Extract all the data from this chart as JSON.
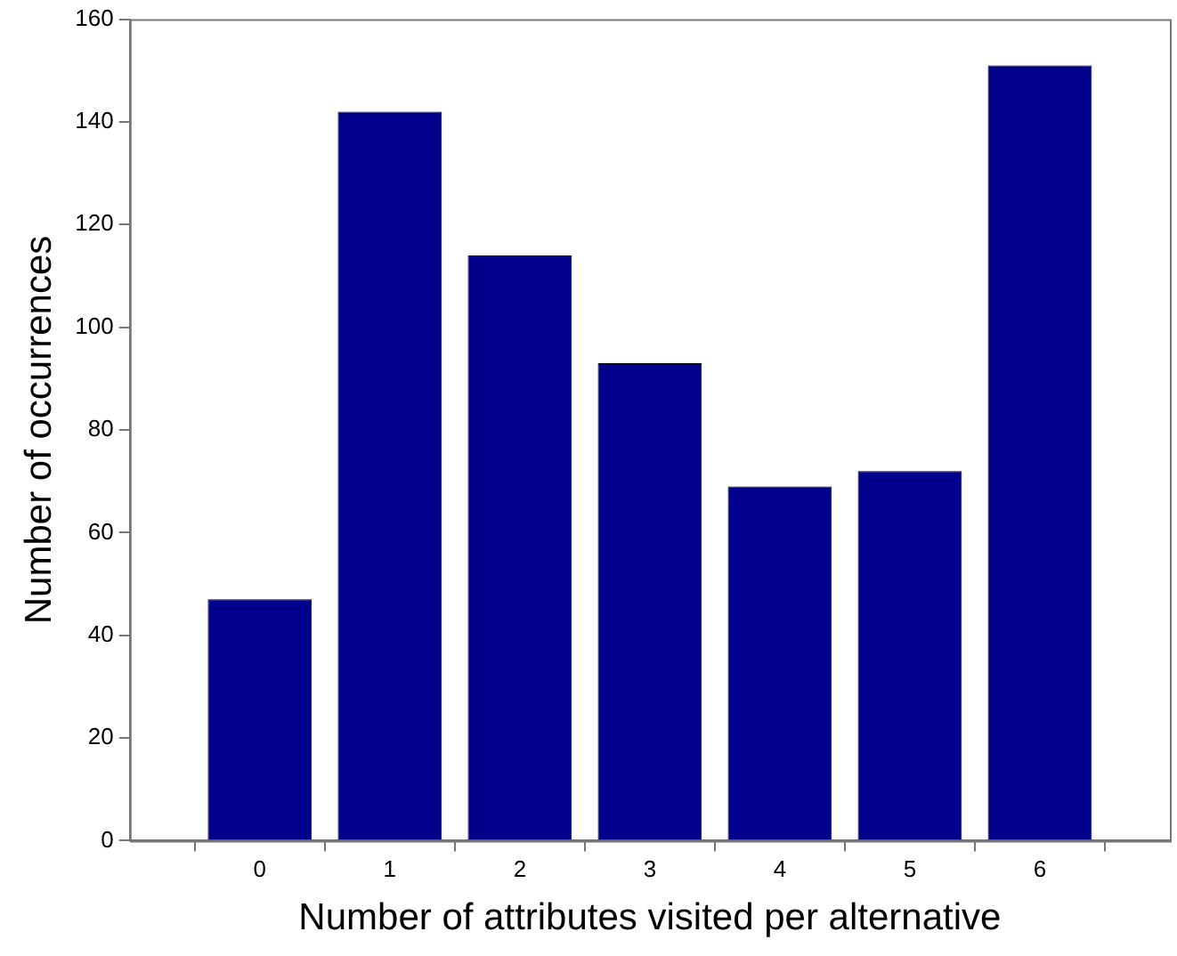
{
  "chart_data": {
    "type": "bar",
    "xlabel": "Number of attributes visited per alternative",
    "ylabel": "Number of occurrences",
    "x": [
      0,
      1,
      2,
      3,
      4,
      5,
      6
    ],
    "values": [
      47,
      142,
      114,
      93,
      69,
      72,
      151
    ],
    "color": "#00008b",
    "xlim": [
      -1,
      7
    ],
    "xticks": [
      0,
      1,
      2,
      3,
      4,
      5,
      6
    ],
    "ylim": [
      0,
      160
    ],
    "yticks": [
      0,
      20,
      40,
      60,
      80,
      100,
      120,
      140,
      160
    ],
    "grid": false,
    "legend": false
  }
}
